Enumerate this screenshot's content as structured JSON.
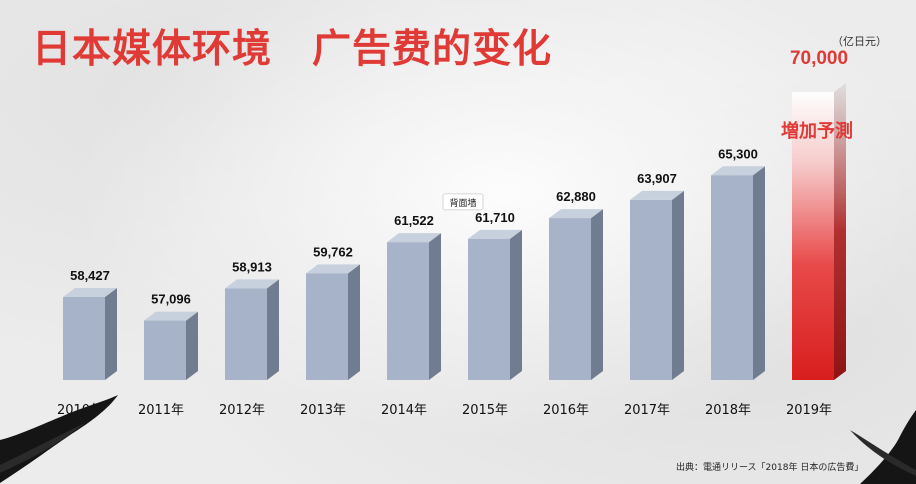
{
  "title": "日本媒体环境　广告费的变化",
  "unit": "（亿日元）",
  "source": "出典：電通リリース「2018年 日本の広告費」",
  "colors": {
    "title": "#e03a36",
    "bar": "#a6b3c8",
    "bar_side": "#707c8f",
    "bar_top": "#c7d0dd",
    "forecast": "#e02a2a",
    "forecast_label": "#e03a36"
  },
  "chart_data": {
    "type": "bar",
    "categories": [
      "2010年",
      "2011年",
      "2012年",
      "2013年",
      "2014年",
      "2015年",
      "2016年",
      "2017年",
      "2018年",
      "2019年"
    ],
    "values": [
      58427,
      57096,
      58913,
      59762,
      61522,
      61710,
      62880,
      63907,
      65300,
      70000
    ],
    "value_labels": [
      "58,427",
      "57,096",
      "58,913",
      "59,762",
      "61,522",
      "61,710",
      "62,880",
      "63,907",
      "65,300",
      "70,000"
    ],
    "forecast_index": 9,
    "forecast_text": "増加予測",
    "annotation": "背面墙",
    "annotation_index": 5
  }
}
